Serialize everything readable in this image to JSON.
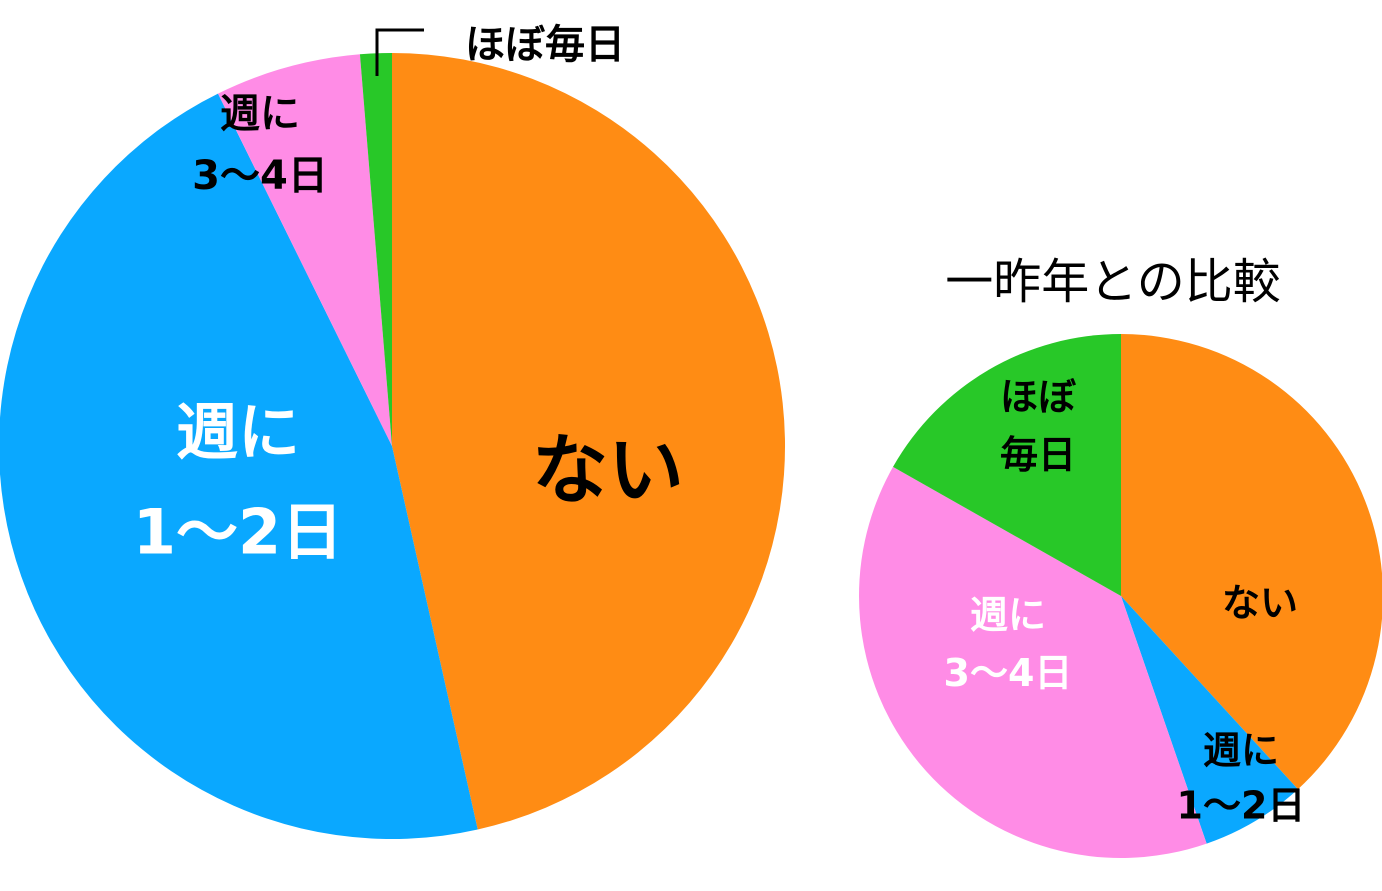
{
  "chart_data": [
    {
      "type": "pie",
      "title": "",
      "slices": [
        {
          "label_lines": [
            "ない"
          ],
          "value": 46.5,
          "color": "#ff8c14"
        },
        {
          "label_lines": [
            "週に",
            "1〜2日"
          ],
          "value": 46.2,
          "color": "#0aa8ff"
        },
        {
          "label_lines": [
            "週に",
            "3〜4日"
          ],
          "value": 6.0,
          "color": "#ff8ce6"
        },
        {
          "label_lines": [
            "ほぼ毎日"
          ],
          "value": 1.3,
          "color": "#28c828"
        }
      ]
    },
    {
      "type": "pie",
      "title": "一昨年との比較",
      "slices": [
        {
          "label_lines": [
            "ない"
          ],
          "value": 38.2,
          "color": "#ff8c14"
        },
        {
          "label_lines": [
            "週に",
            "1〜2日"
          ],
          "value": 6.5,
          "color": "#0aa8ff"
        },
        {
          "label_lines": [
            "週に",
            "3〜4日"
          ],
          "value": 38.5,
          "color": "#ff8ce6"
        },
        {
          "label_lines": [
            "ほぼ",
            "毎日"
          ],
          "value": 16.8,
          "color": "#28c828"
        }
      ]
    }
  ]
}
